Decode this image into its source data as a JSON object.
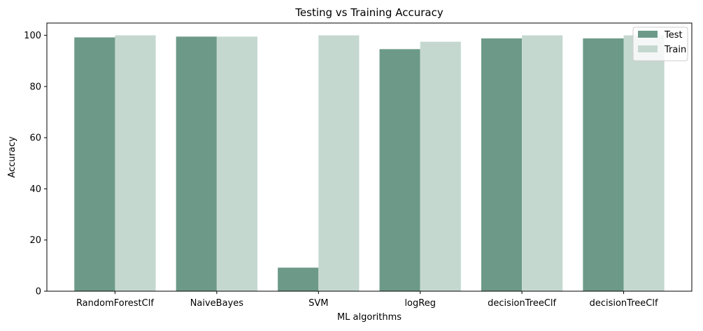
{
  "chart_data": {
    "type": "bar",
    "title": "Testing vs Training Accuracy",
    "xlabel": "ML algorithms",
    "ylabel": "Accuracy",
    "categories": [
      "RandomForestClf",
      "NaiveBayes",
      "SVM",
      "logReg",
      "decisionTreeClf",
      "decisionTreeClf"
    ],
    "series": [
      {
        "name": "Test",
        "color": "#6d9a88",
        "values": [
          99.2,
          99.5,
          9.2,
          94.6,
          98.8,
          98.8
        ]
      },
      {
        "name": "Train",
        "color": "#c5d8d0",
        "values": [
          100.0,
          99.5,
          100.0,
          97.5,
          100.0,
          100.0
        ]
      }
    ],
    "ylim": [
      0,
      104.8
    ],
    "yticks": [
      0,
      20,
      40,
      60,
      80,
      100
    ],
    "grid": false,
    "legend_position": "top-right"
  }
}
